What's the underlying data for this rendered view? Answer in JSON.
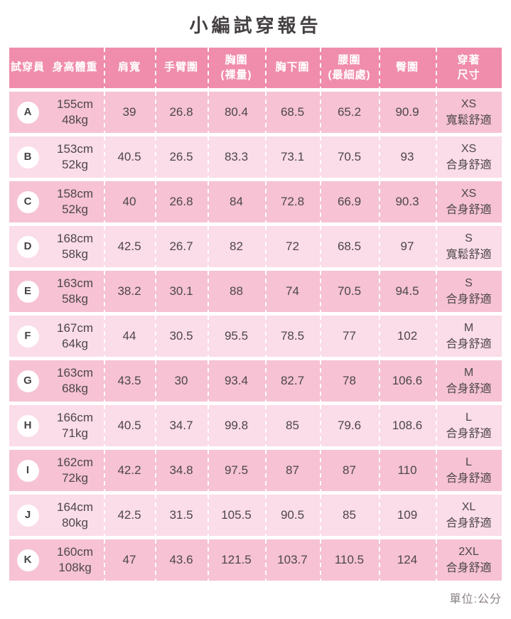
{
  "title": "小編試穿報告",
  "footer": {
    "unit_label": "單位:公分"
  },
  "colors": {
    "header_bg": "#f08dac",
    "row_odd_bg": "#f6c2d4",
    "row_even_bg": "#fbdce9",
    "text": "#4d4748",
    "title_text": "#454041",
    "footer_text": "#8b8384",
    "separator": "#ffffff"
  },
  "chart_data": {
    "type": "table",
    "title": "小編試穿報告",
    "unit": "公分",
    "columns": [
      "試穿員",
      "身高體重",
      "肩寬",
      "手臂圍",
      "胸圍(裸量)",
      "胸下圍",
      "腰圍(最細處)",
      "臀圍",
      "穿著尺寸"
    ],
    "header_lines": [
      [
        "試穿員"
      ],
      [
        "身高體重"
      ],
      [
        "肩寬"
      ],
      [
        "手臂圍"
      ],
      [
        "胸圍",
        "(裸量)"
      ],
      [
        "胸下圍"
      ],
      [
        "腰圍",
        "(最細處)"
      ],
      [
        "臀圍"
      ],
      [
        "穿著",
        "尺寸"
      ]
    ],
    "rows": [
      {
        "tester": "A",
        "height": "155cm",
        "weight": "48kg",
        "shoulder": "39",
        "arm": "26.8",
        "bust": "80.4",
        "underbust": "68.5",
        "waist": "65.2",
        "hip": "90.9",
        "size": "XS",
        "fit": "寬鬆舒適"
      },
      {
        "tester": "B",
        "height": "153cm",
        "weight": "52kg",
        "shoulder": "40.5",
        "arm": "26.5",
        "bust": "83.3",
        "underbust": "73.1",
        "waist": "70.5",
        "hip": "93",
        "size": "XS",
        "fit": "合身舒適"
      },
      {
        "tester": "C",
        "height": "158cm",
        "weight": "52kg",
        "shoulder": "40",
        "arm": "26.8",
        "bust": "84",
        "underbust": "72.8",
        "waist": "66.9",
        "hip": "90.3",
        "size": "XS",
        "fit": "合身舒適"
      },
      {
        "tester": "D",
        "height": "168cm",
        "weight": "58kg",
        "shoulder": "42.5",
        "arm": "26.7",
        "bust": "82",
        "underbust": "72",
        "waist": "68.5",
        "hip": "97",
        "size": "S",
        "fit": "寬鬆舒適"
      },
      {
        "tester": "E",
        "height": "163cm",
        "weight": "58kg",
        "shoulder": "38.2",
        "arm": "30.1",
        "bust": "88",
        "underbust": "74",
        "waist": "70.5",
        "hip": "94.5",
        "size": "S",
        "fit": "合身舒適"
      },
      {
        "tester": "F",
        "height": "167cm",
        "weight": "64kg",
        "shoulder": "44",
        "arm": "30.5",
        "bust": "95.5",
        "underbust": "78.5",
        "waist": "77",
        "hip": "102",
        "size": "M",
        "fit": "合身舒適"
      },
      {
        "tester": "G",
        "height": "163cm",
        "weight": "68kg",
        "shoulder": "43.5",
        "arm": "30",
        "bust": "93.4",
        "underbust": "82.7",
        "waist": "78",
        "hip": "106.6",
        "size": "M",
        "fit": "合身舒適"
      },
      {
        "tester": "H",
        "height": "166cm",
        "weight": "71kg",
        "shoulder": "40.5",
        "arm": "34.7",
        "bust": "99.8",
        "underbust": "85",
        "waist": "79.6",
        "hip": "108.6",
        "size": "L",
        "fit": "合身舒適"
      },
      {
        "tester": "I",
        "height": "162cm",
        "weight": "72kg",
        "shoulder": "42.2",
        "arm": "34.8",
        "bust": "97.5",
        "underbust": "87",
        "waist": "87",
        "hip": "110",
        "size": "L",
        "fit": "合身舒適"
      },
      {
        "tester": "J",
        "height": "164cm",
        "weight": "80kg",
        "shoulder": "42.5",
        "arm": "31.5",
        "bust": "105.5",
        "underbust": "90.5",
        "waist": "85",
        "hip": "109",
        "size": "XL",
        "fit": "合身舒適"
      },
      {
        "tester": "K",
        "height": "160cm",
        "weight": "108kg",
        "shoulder": "47",
        "arm": "43.6",
        "bust": "121.5",
        "underbust": "103.7",
        "waist": "110.5",
        "hip": "124",
        "size": "2XL",
        "fit": "合身舒適"
      }
    ]
  }
}
